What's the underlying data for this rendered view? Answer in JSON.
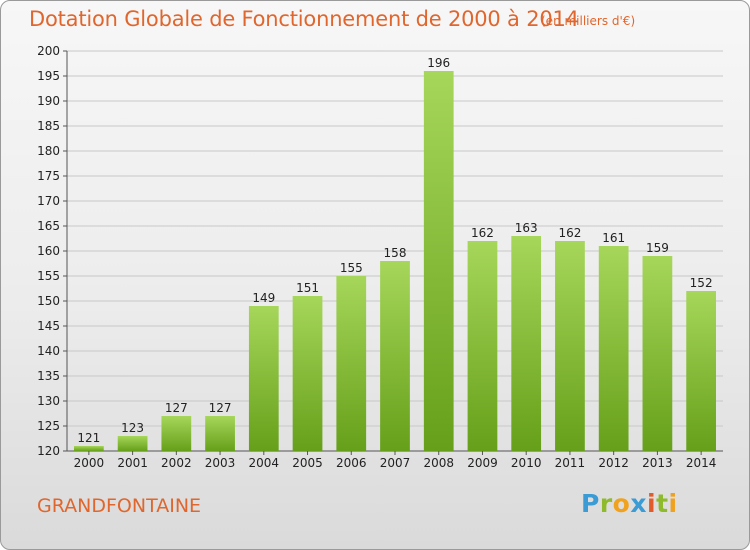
{
  "header": {
    "title": "Dotation Globale de Fonctionnement de 2000 à 2014",
    "unit": "(en milliers d'€)"
  },
  "footer": {
    "commune": "GRANDFONTAINE",
    "logo": [
      "P",
      "r",
      "o",
      "x",
      "i",
      "t",
      "i"
    ]
  },
  "colors": {
    "bar": "#8cc63f",
    "bar_light": "#a6d65a",
    "bar_dark": "#66a01a",
    "title": "#e0662d",
    "grid": "#c8c8c8"
  },
  "chart_data": {
    "type": "bar",
    "title": "Dotation Globale de Fonctionnement de 2000 à 2014",
    "subtitle": "(en milliers d'€)",
    "categories": [
      "2000",
      "2001",
      "2002",
      "2003",
      "2004",
      "2005",
      "2006",
      "2007",
      "2008",
      "2009",
      "2010",
      "2011",
      "2012",
      "2013",
      "2014"
    ],
    "values": [
      121,
      123,
      127,
      127,
      149,
      151,
      155,
      158,
      196,
      162,
      163,
      162,
      161,
      159,
      152
    ],
    "ylim": [
      120,
      200
    ],
    "yticks": [
      120,
      125,
      130,
      135,
      140,
      145,
      150,
      155,
      160,
      165,
      170,
      175,
      180,
      185,
      190,
      195,
      200
    ],
    "grid": true,
    "xlabel": "",
    "ylabel": ""
  }
}
